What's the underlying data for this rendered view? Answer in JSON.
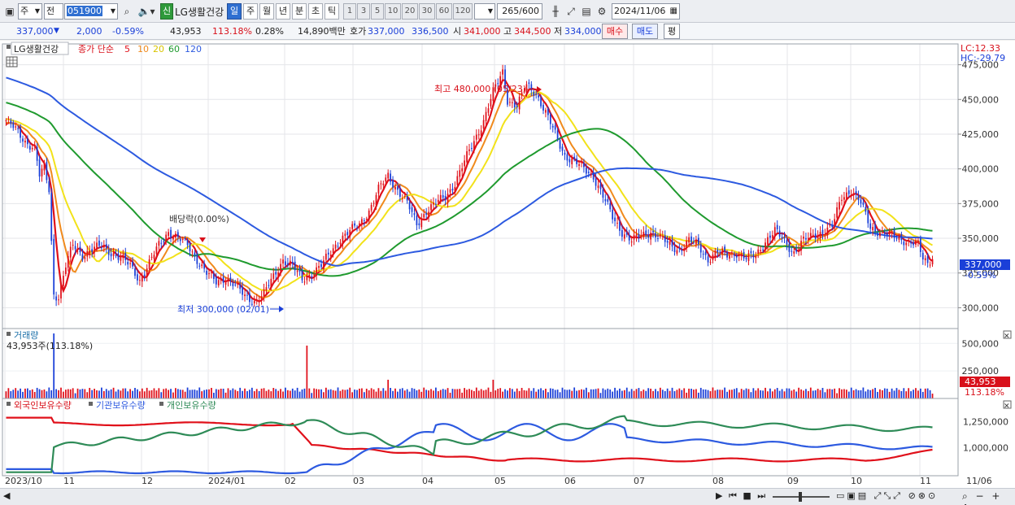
{
  "toolbar": {
    "mode_select": "주",
    "range_select": "전",
    "code_input": "051900",
    "new_badge": "신",
    "stock_name": "LG생활건강",
    "period_tabs": [
      "일",
      "주",
      "월",
      "년",
      "분",
      "초",
      "틱"
    ],
    "active_period": "일",
    "interval_buttons": [
      "1",
      "3",
      "5",
      "10",
      "20",
      "30",
      "60",
      "120"
    ],
    "count_value": "265",
    "count_total": "/600",
    "date_input": "2024/11/06"
  },
  "quote": {
    "price": "337,000",
    "change": "2,000",
    "change_pct": "-0.59%",
    "volume": "43,953",
    "volume_ratio": "113.18%",
    "turnover": "0.28%",
    "amount": "14,890백만",
    "ask_label": "호가",
    "ask_price": "337,000",
    "bid_price": "336,500",
    "open_label": "시",
    "open": "341,000",
    "high_label": "고",
    "high": "344,500",
    "low_label": "저",
    "low": "334,000",
    "buy_button": "매수",
    "sell_button": "매도",
    "eval_button": "평"
  },
  "legend": {
    "name": "LG생활건강",
    "ma_label": "종가 단순",
    "ma_periods": [
      "5",
      "10",
      "20",
      "60",
      "120"
    ]
  },
  "annotations": {
    "lc": "LC:12.33",
    "hc": "HC:-29.79",
    "high_marker": "최고 480,000 (05/23)",
    "low_marker": "최저 300,000 (02/01)",
    "dividend": "배당락(0.00%)",
    "price_tag": "337,000",
    "price_tag_pct": "-0.59%",
    "volume_panel": "거래량",
    "volume_info": "43,953주(113.18%)",
    "volume_tag": "43,953",
    "volume_tag_pct": "113.18%"
  },
  "holdings_legend": [
    "외국인보유수량",
    "기관보유수량",
    "개인보유수량"
  ],
  "colors": {
    "ma5": "#e0101a",
    "ma10": "#f08a1c",
    "ma20": "#f2e21a",
    "ma60": "#1f9a2e",
    "ma120": "#2d5ae0",
    "up": "#e0101a",
    "down": "#1a3fd8",
    "foreign": "#e0101a",
    "institution": "#2d5ae0",
    "individual": "#2e8b57"
  },
  "chart_data": {
    "type": "candlestick",
    "price_axis_ticks": [
      "475,000",
      "450,000",
      "425,000",
      "400,000",
      "375,000",
      "350,000",
      "325,000",
      "300,000"
    ],
    "volume_axis_ticks": [
      "500,000",
      "250,000"
    ],
    "holdings_axis_ticks": [
      "1,250,000",
      "1,000,000"
    ],
    "x_axis_labels": [
      "2023/10",
      "11",
      "12",
      "2024/01",
      "02",
      "03",
      "04",
      "05",
      "06",
      "07",
      "08",
      "09",
      "10",
      "11",
      "11/06"
    ],
    "ylim": [
      285000,
      490000
    ],
    "price_path": [
      [
        0,
        435000
      ],
      [
        4,
        428000
      ],
      [
        8,
        420000
      ],
      [
        12,
        415000
      ],
      [
        14,
        395000
      ],
      [
        16,
        400000
      ],
      [
        18,
        385000
      ],
      [
        20,
        310000
      ],
      [
        22,
        308000
      ],
      [
        25,
        330000
      ],
      [
        28,
        345000
      ],
      [
        32,
        338000
      ],
      [
        36,
        342000
      ],
      [
        40,
        344000
      ],
      [
        44,
        340000
      ],
      [
        48,
        336000
      ],
      [
        52,
        330000
      ],
      [
        56,
        320000
      ],
      [
        60,
        332000
      ],
      [
        64,
        345000
      ],
      [
        68,
        355000
      ],
      [
        72,
        350000
      ],
      [
        76,
        345000
      ],
      [
        80,
        335000
      ],
      [
        84,
        325000
      ],
      [
        88,
        318000
      ],
      [
        92,
        322000
      ],
      [
        96,
        316000
      ],
      [
        100,
        308000
      ],
      [
        104,
        305000
      ],
      [
        108,
        310000
      ],
      [
        112,
        322000
      ],
      [
        116,
        335000
      ],
      [
        120,
        330000
      ],
      [
        124,
        320000
      ],
      [
        128,
        325000
      ],
      [
        132,
        330000
      ],
      [
        136,
        340000
      ],
      [
        140,
        350000
      ],
      [
        144,
        355000
      ],
      [
        148,
        360000
      ],
      [
        152,
        370000
      ],
      [
        156,
        385000
      ],
      [
        160,
        395000
      ],
      [
        164,
        385000
      ],
      [
        168,
        375000
      ],
      [
        172,
        360000
      ],
      [
        176,
        370000
      ],
      [
        180,
        375000
      ],
      [
        184,
        380000
      ],
      [
        188,
        390000
      ],
      [
        192,
        405000
      ],
      [
        196,
        420000
      ],
      [
        200,
        435000
      ],
      [
        204,
        455000
      ],
      [
        208,
        470000
      ],
      [
        210,
        450000
      ],
      [
        214,
        445000
      ],
      [
        218,
        460000
      ],
      [
        222,
        455000
      ],
      [
        226,
        440000
      ],
      [
        230,
        425000
      ],
      [
        234,
        410000
      ],
      [
        238,
        405000
      ],
      [
        242,
        400000
      ],
      [
        246,
        395000
      ],
      [
        250,
        380000
      ],
      [
        254,
        365000
      ],
      [
        258,
        355000
      ],
      [
        262,
        348000
      ],
      [
        266,
        352000
      ],
      [
        270,
        355000
      ],
      [
        274,
        350000
      ],
      [
        278,
        345000
      ],
      [
        282,
        342000
      ],
      [
        286,
        348000
      ],
      [
        290,
        345000
      ],
      [
        294,
        335000
      ],
      [
        298,
        340000
      ],
      [
        302,
        338000
      ],
      [
        306,
        340000
      ],
      [
        310,
        335000
      ],
      [
        314,
        338000
      ],
      [
        318,
        348000
      ],
      [
        322,
        355000
      ],
      [
        326,
        348000
      ],
      [
        330,
        340000
      ],
      [
        334,
        348000
      ],
      [
        338,
        352000
      ],
      [
        342,
        355000
      ],
      [
        346,
        358000
      ],
      [
        350,
        380000
      ],
      [
        354,
        385000
      ],
      [
        358,
        375000
      ],
      [
        362,
        358000
      ],
      [
        366,
        355000
      ],
      [
        370,
        352000
      ],
      [
        374,
        350000
      ],
      [
        378,
        348000
      ],
      [
        382,
        345000
      ],
      [
        384,
        335000
      ],
      [
        386,
        332000
      ],
      [
        388,
        337000
      ]
    ],
    "high": {
      "value": 480000,
      "date": "05/23"
    },
    "low": {
      "value": 300000,
      "date": "02/01"
    },
    "last": {
      "close": 337000,
      "open": 341000,
      "high": 344500,
      "low": 334000,
      "volume": 43953
    }
  }
}
